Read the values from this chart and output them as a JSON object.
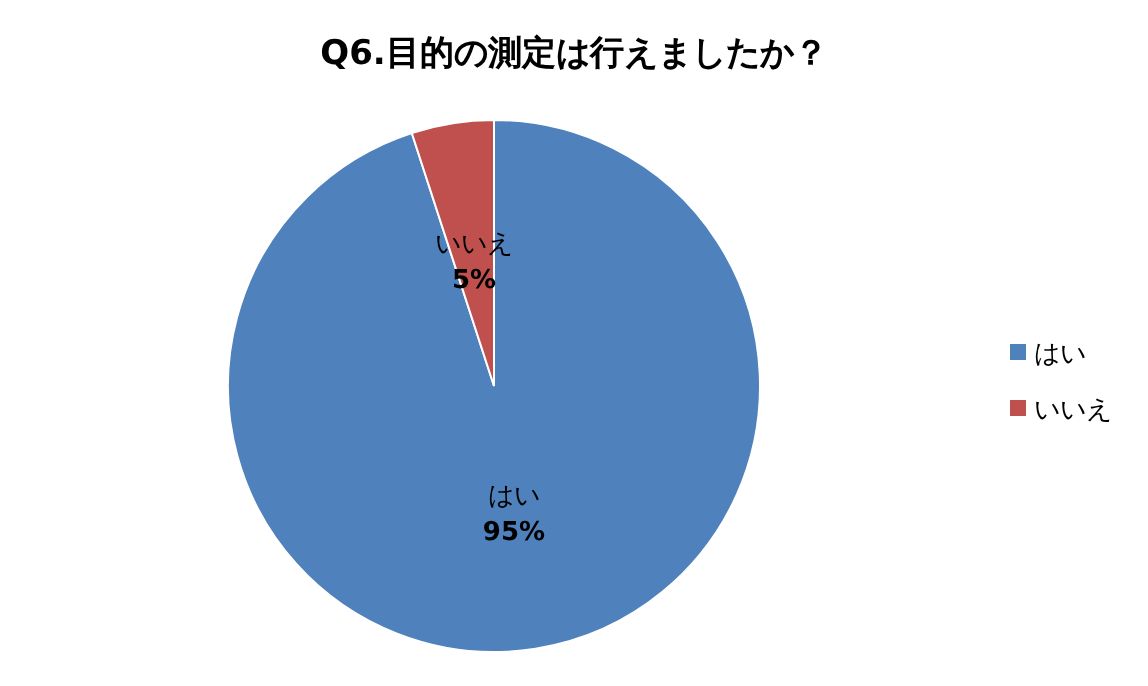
{
  "chart_data": {
    "type": "pie",
    "title": "Q6.目的の測定は行えましたか？",
    "categories": [
      "はい",
      "いいえ"
    ],
    "values": [
      95,
      5
    ],
    "colors": [
      "#4f81bd",
      "#c0504d"
    ],
    "value_labels": [
      "95%",
      "5%"
    ],
    "legend": "right"
  }
}
